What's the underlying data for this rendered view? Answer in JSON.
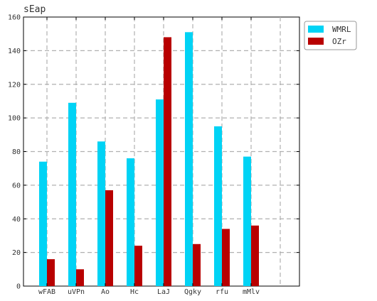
{
  "chart_data": {
    "type": "bar",
    "title": "sEap",
    "xlabel": "",
    "ylabel": "",
    "categories": [
      "wFAB",
      "uVPn",
      "Ao",
      "Hc",
      "LaJ",
      "Qgky",
      "rfu",
      "mMlv"
    ],
    "series": [
      {
        "name": "WMRL",
        "color": "#00d3f5",
        "values": [
          74,
          109,
          86,
          76,
          111,
          151,
          95,
          77
        ]
      },
      {
        "name": "OZr",
        "color": "#b80000",
        "values": [
          16,
          10,
          57,
          24,
          148,
          25,
          34,
          36
        ]
      }
    ],
    "ylim": [
      0,
      160
    ],
    "yticks": [
      0,
      20,
      40,
      60,
      80,
      100,
      120,
      140,
      160
    ],
    "grid": true,
    "legend_position": "top-right"
  }
}
